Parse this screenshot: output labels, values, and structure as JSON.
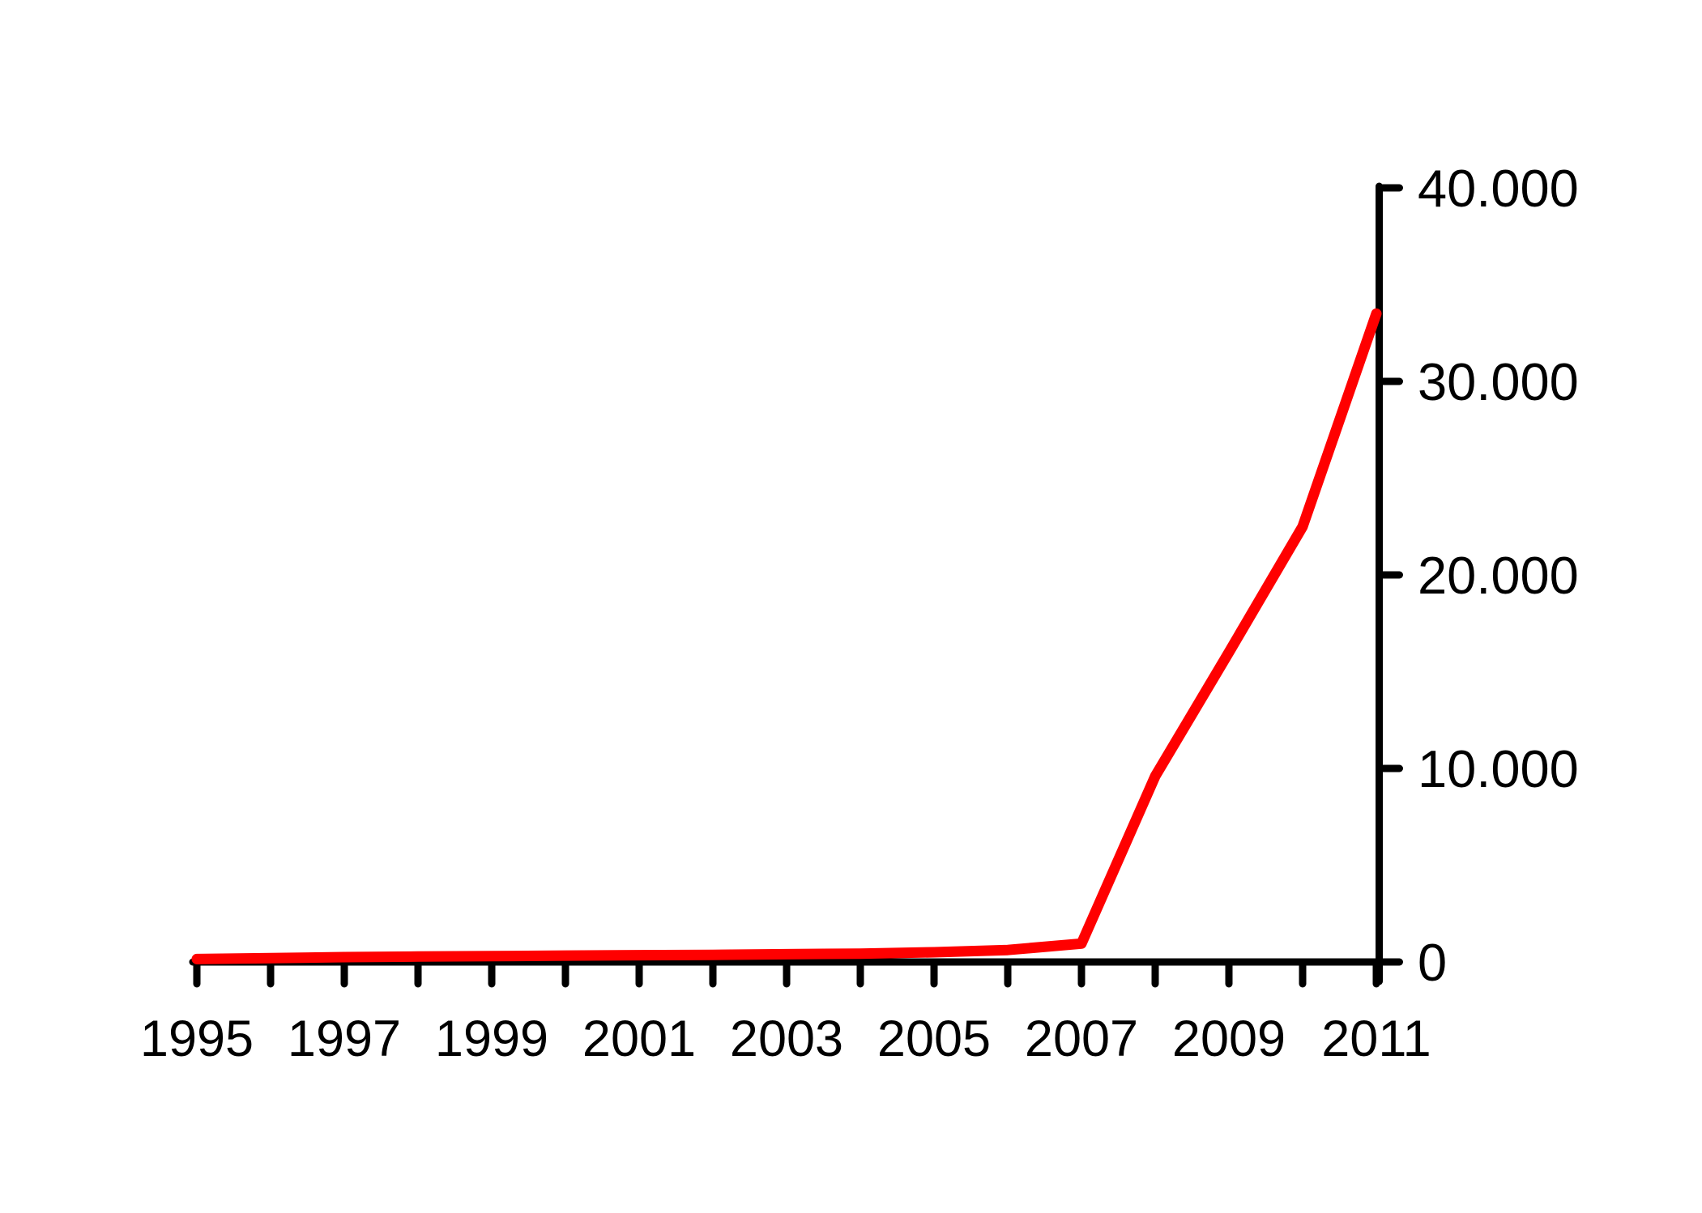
{
  "chart_data": {
    "type": "line",
    "title": "",
    "xlabel": "",
    "ylabel": "",
    "x_range": [
      1995,
      2011
    ],
    "y_range": [
      0,
      40000
    ],
    "x_tick_years": [
      1995,
      1996,
      1997,
      1998,
      1999,
      2000,
      2001,
      2002,
      2003,
      2004,
      2005,
      2006,
      2007,
      2008,
      2009,
      2010,
      2011
    ],
    "x_label_years": [
      1995,
      1997,
      1999,
      2001,
      2003,
      2005,
      2007,
      2009,
      2011
    ],
    "x_label_texts": [
      "1995",
      "1997",
      "1999",
      "2001",
      "2003",
      "2005",
      "2007",
      "2009",
      "2011"
    ],
    "y_ticks": [
      0,
      10000,
      20000,
      30000,
      40000
    ],
    "y_tick_labels": [
      "0",
      "10.000",
      "20.000",
      "30.000",
      "40.000"
    ],
    "y_axis_side": "right",
    "grid": false,
    "legend": false,
    "background_color": "#ffffff",
    "axis_color": "#000000",
    "number_format": "thousands separated by dot",
    "series": [
      {
        "name": "series-1",
        "color": "#ff0000",
        "x": [
          1995,
          1996,
          1997,
          1998,
          1999,
          2000,
          2001,
          2002,
          2003,
          2004,
          2005,
          2006,
          2007,
          2008,
          2009,
          2010,
          2011
        ],
        "values": [
          150,
          200,
          250,
          280,
          300,
          330,
          350,
          370,
          400,
          430,
          500,
          620,
          950,
          9600,
          16000,
          22500,
          33500
        ]
      }
    ]
  }
}
